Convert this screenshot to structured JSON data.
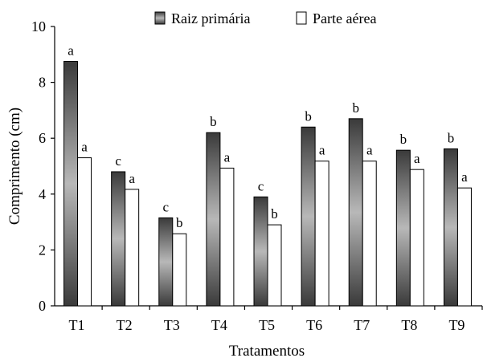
{
  "chart_data": {
    "type": "bar",
    "categories": [
      "T1",
      "T2",
      "T3",
      "T4",
      "T5",
      "T6",
      "T7",
      "T8",
      "T9"
    ],
    "series": [
      {
        "name": "Raiz primária",
        "values": [
          8.75,
          4.8,
          3.15,
          6.2,
          3.9,
          6.4,
          6.7,
          5.57,
          5.62
        ],
        "letters": [
          "a",
          "c",
          "c",
          "b",
          "c",
          "b",
          "b",
          "b",
          "b"
        ]
      },
      {
        "name": "Parte aérea",
        "values": [
          5.3,
          4.17,
          2.58,
          4.93,
          2.9,
          5.18,
          5.18,
          4.88,
          4.22
        ],
        "letters": [
          "a",
          "a",
          "b",
          "a",
          "b",
          "a",
          "a",
          "a",
          "a"
        ]
      }
    ],
    "xlabel": "Tratamentos",
    "ylabel": "Comprimento (cm)",
    "ylim": [
      0,
      10
    ],
    "yticks": [
      0,
      2,
      4,
      6,
      8,
      10
    ],
    "grid": false,
    "legend_position": "top-center",
    "colors": {
      "raiz_dark": "#3a3a3a",
      "raiz_light": "#b8b8b8",
      "parte_fill": "#ffffff",
      "stroke": "#000000"
    }
  }
}
